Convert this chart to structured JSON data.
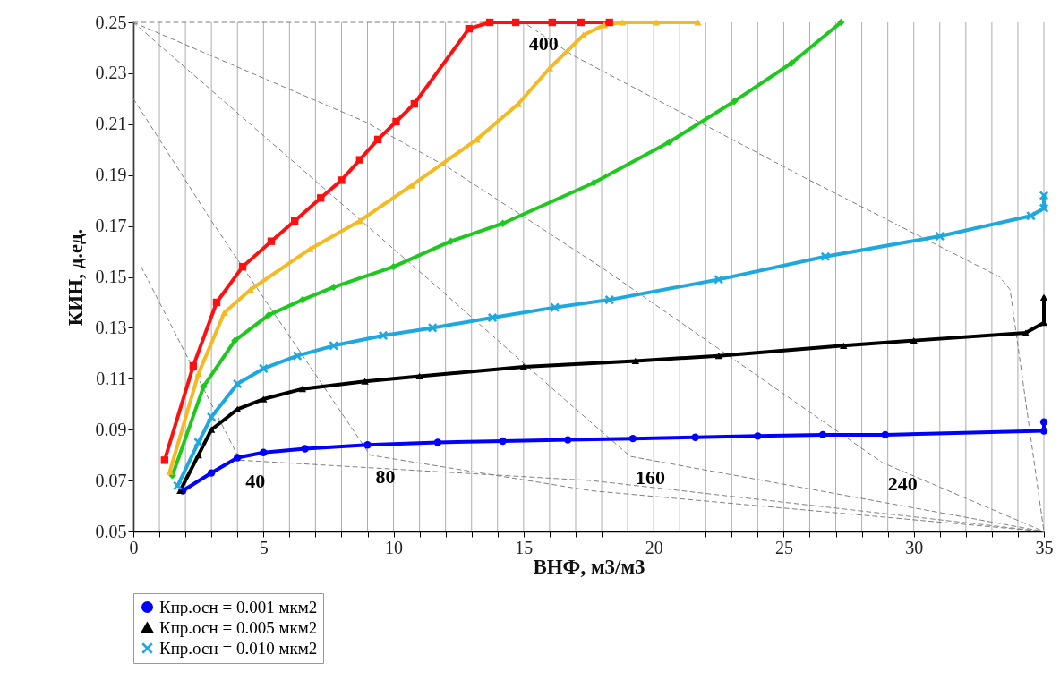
{
  "chart_data": {
    "type": "line",
    "xlabel": "ВНФ, м3/м3",
    "ylabel": "КИН, д.ед.",
    "xlim": [
      0,
      35
    ],
    "ylim": [
      0.05,
      0.25
    ],
    "xticks": [
      0,
      {
        "value": 1,
        "label": null
      },
      {
        "value": 2,
        "label": null
      },
      {
        "value": 3,
        "label": null
      },
      {
        "value": 4,
        "label": null
      },
      5,
      {
        "value": 6,
        "label": null
      },
      {
        "value": 7,
        "label": null
      },
      {
        "value": 8,
        "label": null
      },
      {
        "value": 9,
        "label": null
      },
      10,
      {
        "value": 11,
        "label": null
      },
      {
        "value": 12,
        "label": null
      },
      {
        "value": 13,
        "label": null
      },
      {
        "value": 14,
        "label": null
      },
      15,
      {
        "value": 16,
        "label": null
      },
      {
        "value": 17,
        "label": null
      },
      {
        "value": 18,
        "label": null
      },
      {
        "value": 19,
        "label": null
      },
      20,
      {
        "value": 21,
        "label": null
      },
      {
        "value": 22,
        "label": null
      },
      {
        "value": 23,
        "label": null
      },
      {
        "value": 24,
        "label": null
      },
      25,
      {
        "value": 26,
        "label": null
      },
      {
        "value": 27,
        "label": null
      },
      {
        "value": 28,
        "label": null
      },
      {
        "value": 29,
        "label": null
      },
      30,
      {
        "value": 31,
        "label": null
      },
      {
        "value": 32,
        "label": null
      },
      {
        "value": 33,
        "label": null
      },
      {
        "value": 34,
        "label": null
      },
      35
    ],
    "yticks": [
      0.05,
      0.07,
      0.09,
      0.11,
      0.13,
      0.15,
      0.17,
      0.19,
      0.21,
      0.23,
      0.25
    ],
    "grid": true,
    "legend": "bottom",
    "line_style": "solid",
    "series": [
      {
        "name": "40",
        "color": "#7f7f7f",
        "line_style": "dashed",
        "marker": "none",
        "x": [
          0.3,
          4.1,
          17.6,
          35
        ],
        "values": [
          0.154,
          0.078,
          0.07,
          0.05
        ]
      },
      {
        "name": "80",
        "color": "#7f7f7f",
        "line_style": "dashed",
        "marker": "none",
        "x": [
          0,
          3,
          9.1,
          17.6,
          35
        ],
        "values": [
          0.22,
          0.172,
          0.08,
          0.066,
          0.05
        ]
      },
      {
        "name": "160",
        "color": "#7f7f7f",
        "line_style": "dashed",
        "marker": "none",
        "x": [
          0,
          11.8,
          16.9,
          19.1,
          35
        ],
        "values": [
          0.25,
          0.145,
          0.099,
          0.0795,
          0.05
        ]
      },
      {
        "name": "240",
        "color": "#7f7f7f",
        "line_style": "dashed",
        "marker": "none",
        "x": [
          0,
          8.9,
          12.1,
          18.1,
          28.8,
          35
        ],
        "values": [
          0.25,
          0.211,
          0.193,
          0.153,
          0.077,
          0.05
        ]
      },
      {
        "name": "400",
        "color": "#7f7f7f",
        "line_style": "dashed",
        "marker": "none",
        "x": [
          0,
          15,
          16.9,
          25.8,
          33.3,
          33.7,
          35
        ],
        "values": [
          0.25,
          0.25,
          0.237,
          0.189,
          0.15,
          0.145,
          0.05
        ]
      },
      {
        "name": "Кпр.осн = 0.001 мкм2",
        "color": "#0000ff",
        "marker": "circle",
        "x": [
          1.9,
          3,
          4,
          5,
          6.6,
          9,
          11.7,
          14.2,
          16.7,
          19.2,
          21.6,
          24,
          26.5,
          28.9,
          35,
          35
        ],
        "values": [
          0.066,
          0.073,
          0.079,
          0.081,
          0.0825,
          0.084,
          0.085,
          0.0855,
          0.086,
          0.0865,
          0.087,
          0.0875,
          0.088,
          0.088,
          0.0895,
          0.093
        ]
      },
      {
        "name": "Кпр.осн = 0.005 мкм2",
        "color": "#000000",
        "marker": "triangle",
        "x": [
          1.8,
          2.5,
          3,
          4,
          5,
          6.5,
          8.9,
          11,
          15,
          19.3,
          22.5,
          27.3,
          30,
          34.3,
          35,
          35
        ],
        "values": [
          0.066,
          0.08,
          0.09,
          0.098,
          0.102,
          0.106,
          0.109,
          0.111,
          0.1147,
          0.117,
          0.119,
          0.123,
          0.125,
          0.128,
          0.132,
          0.142
        ]
      },
      {
        "name": "Кпр.осн = 0.010 мкм2",
        "color": "#1ea8e0",
        "marker": "cross",
        "x": [
          1.7,
          2.5,
          3,
          4,
          5,
          6.3,
          7.7,
          9.6,
          11.5,
          13.8,
          16.2,
          18.3,
          22.5,
          26.6,
          31,
          34.5,
          35,
          35
        ],
        "values": [
          0.068,
          0.085,
          0.095,
          0.108,
          0.114,
          0.119,
          0.123,
          0.127,
          0.13,
          0.134,
          0.138,
          0.141,
          0.149,
          0.158,
          0.166,
          0.174,
          0.177,
          0.182
        ]
      },
      {
        "color": "#1ec81e",
        "marker": "diamond",
        "x": [
          1.5,
          2.7,
          3.9,
          5.2,
          6.5,
          7.7,
          10,
          12.2,
          14.2,
          17.7,
          20.6,
          23.1,
          25.3,
          27.2
        ],
        "values": [
          0.072,
          0.107,
          0.125,
          0.135,
          0.141,
          0.146,
          0.154,
          0.164,
          0.171,
          0.187,
          0.203,
          0.219,
          0.234,
          0.25
        ]
      },
      {
        "color": "#f5b921",
        "marker": "triangle",
        "x": [
          1.4,
          2.5,
          3.5,
          4.5,
          6.8,
          8.7,
          10.7,
          13.2,
          14.8,
          16,
          17.3,
          18.1,
          18.8,
          20.1,
          21.7
        ],
        "values": [
          0.0735,
          0.112,
          0.136,
          0.145,
          0.161,
          0.172,
          0.186,
          0.204,
          0.218,
          0.232,
          0.245,
          0.249,
          0.25,
          0.25,
          0.25
        ]
      },
      {
        "color": "#ff1010",
        "marker": "square",
        "x": [
          1.2,
          2.3,
          3.2,
          4.2,
          5.3,
          6.2,
          7.2,
          8,
          8.7,
          9.4,
          10.1,
          10.8,
          12.9,
          13.7,
          14.7,
          16.1,
          17.2,
          18.3
        ],
        "values": [
          0.078,
          0.115,
          0.14,
          0.154,
          0.164,
          0.172,
          0.181,
          0.188,
          0.196,
          0.204,
          0.211,
          0.218,
          0.2475,
          0.25,
          0.25,
          0.25,
          0.25,
          0.25
        ]
      }
    ]
  }
}
